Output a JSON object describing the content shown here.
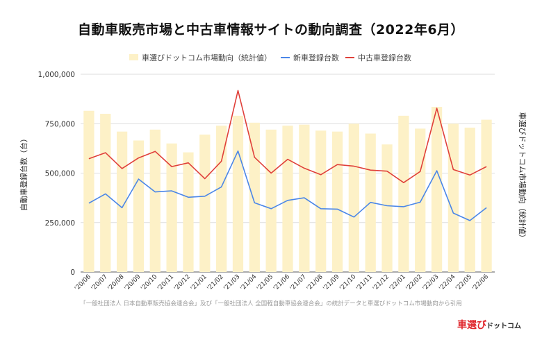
{
  "chart_data": {
    "type": "bar+line",
    "title": "自動車販売市場と中古車情報サイトの動向調査（2022年6月）",
    "ylabel_left": "自動車登録台数（台）",
    "ylabel_right": "車選びドットコム市場動向（統計値）",
    "ylim": [
      0,
      1000000
    ],
    "yticks": [
      0,
      250000,
      500000,
      750000,
      1000000
    ],
    "ytick_labels": [
      "0",
      "250,000",
      "500,000",
      "750,000",
      "1,000,000"
    ],
    "legend_position": "top",
    "grid": true,
    "categories": [
      "'20/06",
      "'20/07",
      "'20/08",
      "'20/09",
      "'20/10",
      "'20/11",
      "'20/12",
      "'21/01",
      "'21/02",
      "'21/03",
      "'21/04",
      "'21/05",
      "'21/06",
      "'21/07",
      "'21/08",
      "'21/09",
      "'21/10",
      "'21/11",
      "'21/12",
      "'22/01",
      "'22/02",
      "'22/03",
      "'22/04",
      "'22/05",
      "'22/06"
    ],
    "series": [
      {
        "name": "車選びドットコム市場動向（統計値）",
        "kind": "bar",
        "color": "#fdf1c7",
        "values": [
          815000,
          800000,
          710000,
          665000,
          720000,
          650000,
          605000,
          695000,
          740000,
          790000,
          755000,
          720000,
          740000,
          745000,
          715000,
          710000,
          750000,
          700000,
          645000,
          790000,
          725000,
          835000,
          750000,
          730000,
          770000
        ]
      },
      {
        "name": "新車登録台数",
        "kind": "line",
        "color": "#4a86e8",
        "values": [
          348000,
          395000,
          325000,
          470000,
          405000,
          410000,
          378000,
          383000,
          430000,
          612000,
          350000,
          320000,
          362000,
          375000,
          320000,
          318000,
          278000,
          352000,
          335000,
          330000,
          353000,
          512000,
          298000,
          260000,
          325000
        ]
      },
      {
        "name": "中古車登録台数",
        "kind": "line",
        "color": "#e0403a",
        "values": [
          573000,
          603000,
          523000,
          577000,
          610000,
          533000,
          552000,
          472000,
          560000,
          918000,
          580000,
          500000,
          570000,
          525000,
          492000,
          543000,
          535000,
          515000,
          510000,
          452000,
          508000,
          828000,
          518000,
          490000,
          533000
        ]
      }
    ]
  },
  "source_note": "「一般社団法人 日本自動車販売協会連合会」及び「一般社団法人 全国軽自動車協会連合会」の統計データと車選びドットコム市場動向から引用",
  "logo": {
    "part1": "車選び",
    "part2": "ドットコム"
  }
}
